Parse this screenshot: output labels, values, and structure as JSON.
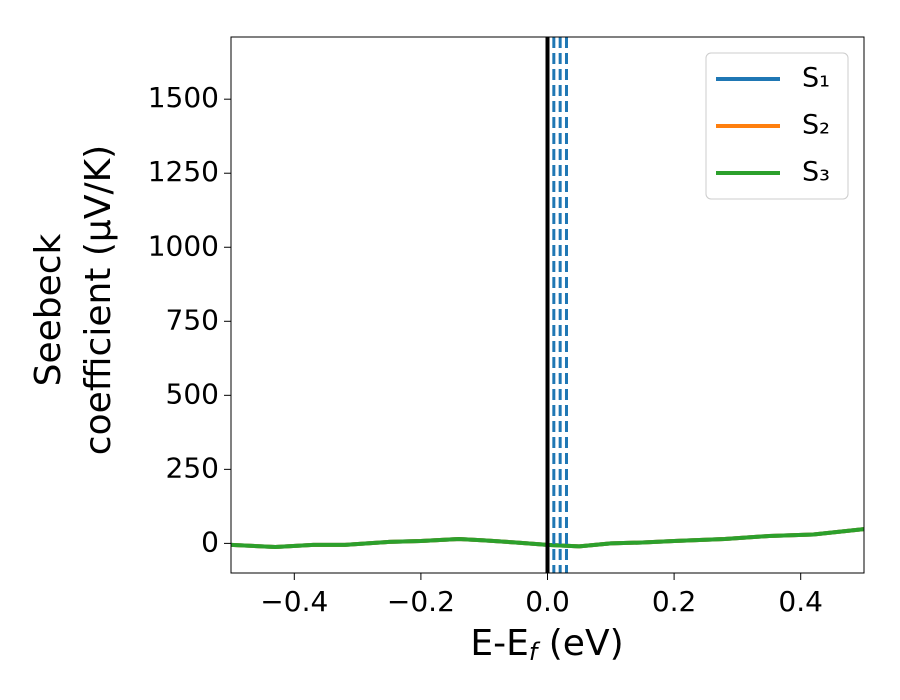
{
  "chart_data": {
    "type": "line",
    "xlabel": [
      "E-E",
      "f",
      " (eV)"
    ],
    "ylabel": [
      "Seebeck",
      "coefficient  (μV/K)"
    ],
    "x": [
      -0.5,
      -0.43,
      -0.37,
      -0.32,
      -0.25,
      -0.2,
      -0.14,
      -0.1,
      -0.05,
      0.0,
      0.05,
      0.1,
      0.15,
      0.2,
      0.28,
      0.35,
      0.42,
      0.5
    ],
    "series": [
      {
        "name": "S₁",
        "color": "#1f77b4",
        "values": [
          -5,
          -12,
          -5,
          -5,
          5,
          8,
          15,
          10,
          3,
          -5,
          -10,
          0,
          3,
          8,
          15,
          25,
          30,
          48
        ]
      },
      {
        "name": "S₂",
        "color": "#ff7f0e",
        "values": [
          -5,
          -12,
          -5,
          -5,
          5,
          8,
          15,
          10,
          3,
          -5,
          -10,
          0,
          3,
          8,
          15,
          25,
          30,
          48
        ]
      },
      {
        "name": "S₃",
        "color": "#2ca02c",
        "values": [
          -5,
          -12,
          -5,
          -5,
          5,
          8,
          15,
          10,
          3,
          -5,
          -10,
          0,
          3,
          8,
          15,
          25,
          30,
          48
        ]
      }
    ],
    "vlines": [
      {
        "x": 0.0,
        "color": "#000000",
        "style": "solid"
      },
      {
        "x": 0.01,
        "color": "#1f77b4",
        "style": "dashed"
      },
      {
        "x": 0.02,
        "color": "#1f77b4",
        "style": "dashed"
      },
      {
        "x": 0.03,
        "color": "#1f77b4",
        "style": "dashed"
      }
    ],
    "xlim": [
      -0.5,
      0.5
    ],
    "ylim": [
      -100,
      1710
    ],
    "xticks": [
      {
        "value": -0.4,
        "label": "−0.4"
      },
      {
        "value": -0.2,
        "label": "−0.2"
      },
      {
        "value": 0.0,
        "label": "0.0"
      },
      0.2,
      0.4
    ],
    "yticks": [
      0,
      250,
      500,
      750,
      1000,
      1250,
      1500
    ],
    "grid": false,
    "legend": "upper right"
  }
}
